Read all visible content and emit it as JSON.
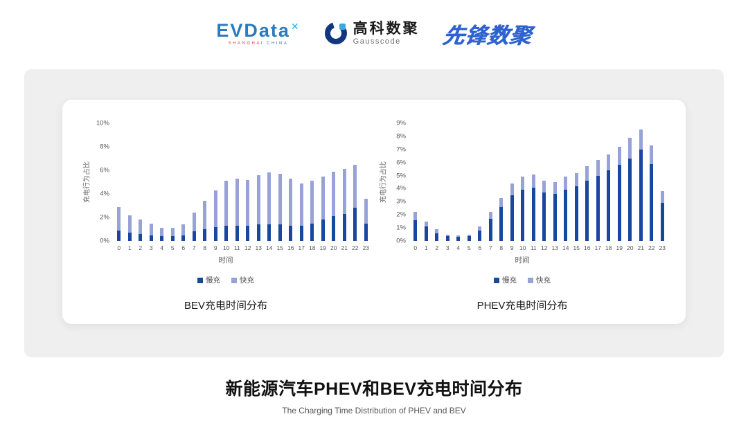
{
  "header": {
    "evdata": {
      "name": "EVData",
      "sup": "✕",
      "sub_left": "SHANGHAI",
      "sub_right": "CHINA"
    },
    "gausscode": {
      "cn": "高科数聚",
      "en": "Gausscode"
    },
    "pioneer": {
      "text": "先锋数聚"
    }
  },
  "chart_data": [
    {
      "type": "bar",
      "stacked": true,
      "title": "BEV充电时间分布",
      "xlabel": "时间",
      "ylabel": "充电行为占比",
      "ylim": [
        0,
        10
      ],
      "ytick_step": 2,
      "grid": false,
      "legend_position": "bottom",
      "categories": [
        "0",
        "1",
        "2",
        "3",
        "4",
        "5",
        "6",
        "7",
        "8",
        "9",
        "10",
        "11",
        "12",
        "13",
        "14",
        "15",
        "16",
        "17",
        "18",
        "19",
        "20",
        "21",
        "22",
        "23"
      ],
      "series": [
        {
          "name": "慢充",
          "color": "#17479e",
          "values": [
            0.9,
            0.7,
            0.6,
            0.5,
            0.4,
            0.4,
            0.5,
            0.8,
            1.0,
            1.2,
            1.3,
            1.3,
            1.3,
            1.4,
            1.4,
            1.4,
            1.3,
            1.3,
            1.5,
            1.8,
            2.1,
            2.3,
            2.8,
            1.5
          ]
        },
        {
          "name": "快充",
          "color": "#97a3d8",
          "values": [
            2.0,
            1.5,
            1.2,
            1.0,
            0.7,
            0.7,
            0.9,
            1.6,
            2.4,
            3.1,
            3.8,
            4.0,
            3.9,
            4.2,
            4.4,
            4.3,
            4.0,
            3.6,
            3.6,
            3.7,
            3.8,
            3.8,
            3.7,
            2.1
          ]
        }
      ]
    },
    {
      "type": "bar",
      "stacked": true,
      "title": "PHEV充电时间分布",
      "xlabel": "时间",
      "ylabel": "充电行为占比",
      "ylim": [
        0,
        9
      ],
      "ytick_step": 1,
      "grid": false,
      "legend_position": "bottom",
      "categories": [
        "0",
        "1",
        "2",
        "3",
        "4",
        "5",
        "6",
        "7",
        "8",
        "9",
        "10",
        "11",
        "12",
        "13",
        "14",
        "15",
        "16",
        "17",
        "18",
        "19",
        "20",
        "21",
        "22",
        "23"
      ],
      "series": [
        {
          "name": "慢充",
          "color": "#17479e",
          "values": [
            1.6,
            1.1,
            0.6,
            0.35,
            0.3,
            0.35,
            0.8,
            1.7,
            2.6,
            3.5,
            3.9,
            4.1,
            3.7,
            3.6,
            3.9,
            4.2,
            4.6,
            5.0,
            5.4,
            5.8,
            6.3,
            7.0,
            5.9,
            2.9
          ]
        },
        {
          "name": "快充",
          "color": "#97a3d8",
          "values": [
            0.6,
            0.4,
            0.3,
            0.15,
            0.1,
            0.15,
            0.3,
            0.5,
            0.7,
            0.9,
            1.0,
            1.0,
            0.9,
            0.9,
            1.0,
            1.0,
            1.1,
            1.2,
            1.2,
            1.4,
            1.6,
            1.5,
            1.4,
            0.9
          ]
        }
      ]
    }
  ],
  "footer": {
    "title": "新能源汽车PHEV和BEV充电时间分布",
    "subtitle": "The Charging Time Distribution of PHEV and BEV"
  }
}
